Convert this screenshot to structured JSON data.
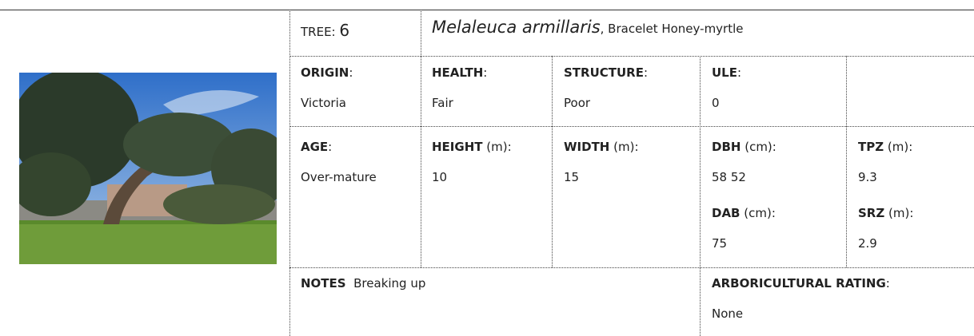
{
  "tree": {
    "label": "TREE:",
    "number": "6"
  },
  "species": {
    "scientific": "Melaleuca armillaris",
    "common": ", Bracelet Honey-myrtle"
  },
  "origin": {
    "label": "ORIGIN",
    "unit": ":",
    "value": "Victoria"
  },
  "health": {
    "label": "HEALTH",
    "unit": ":",
    "value": "Fair"
  },
  "structure": {
    "label": "STRUCTURE",
    "unit": ":",
    "value": "Poor"
  },
  "ule": {
    "label": "ULE",
    "unit": ":",
    "value": "0"
  },
  "age": {
    "label": "AGE",
    "unit": ":",
    "value": "Over-mature"
  },
  "height": {
    "label": "HEIGHT",
    "unit": " (m):",
    "value": "10"
  },
  "width": {
    "label": "WIDTH",
    "unit": " (m):",
    "value": "15"
  },
  "dbh": {
    "label": "DBH",
    "unit": " (cm):",
    "value": "58 52"
  },
  "tpz": {
    "label": "TPZ",
    "unit": " (m):",
    "value": "9.3"
  },
  "dab": {
    "label": "DAB",
    "unit": " (cm):",
    "value": "75"
  },
  "srz": {
    "label": "SRZ",
    "unit": " (m):",
    "value": "2.9"
  },
  "notes": {
    "label": "NOTES",
    "value": "Breaking up"
  },
  "rating": {
    "label": "ARBORICULTURAL RATING",
    "unit": ":",
    "value": "None"
  }
}
